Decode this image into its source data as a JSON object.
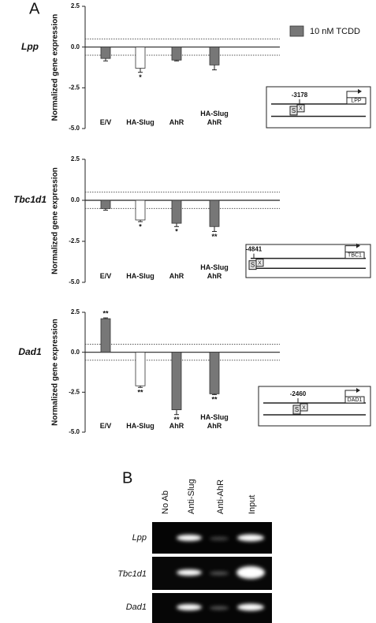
{
  "panel_a_label": "A",
  "panel_b_label": "B",
  "legend": {
    "label": "10 nM TCDD",
    "color": "#777777"
  },
  "chart_data": [
    {
      "type": "bar",
      "gene_label": "Lpp",
      "y_label": "Normalized gene expression",
      "categories": [
        "E/V",
        "HA-Slug",
        "AhR",
        "HA-Slug\nAhR"
      ],
      "values": [
        -0.7,
        -1.3,
        -0.8,
        -1.1
      ],
      "errors": [
        0.15,
        0.25,
        0.05,
        0.3
      ],
      "colors": [
        "#777777",
        "#ffffff",
        "#777777",
        "#777777"
      ],
      "annotations": [
        null,
        "*",
        null,
        null
      ],
      "ref_lines": [
        0.5,
        -0.5
      ],
      "ylim": [
        -5,
        2.5
      ],
      "yticks": [
        2.5,
        {
          "value": 0,
          "label": "0.0"
        },
        -2.5,
        {
          "value": -5,
          "label": "-5.0"
        }
      ]
    },
    {
      "type": "bar",
      "gene_label": "Tbc1d1",
      "y_label": "Normalized gene expression",
      "categories": [
        "E/V",
        "HA-Slug",
        "AhR",
        "HA-Slug\nAhR"
      ],
      "values": [
        -0.5,
        -1.2,
        -1.4,
        -1.6
      ],
      "errors": [
        0.1,
        0.1,
        0.2,
        0.3
      ],
      "colors": [
        "#777777",
        "#ffffff",
        "#777777",
        "#777777"
      ],
      "annotations": [
        null,
        "*",
        "*",
        "**"
      ],
      "ref_lines": [
        0.5,
        -0.5
      ],
      "ylim": [
        -5,
        2.5
      ],
      "yticks": [
        2.5,
        {
          "value": 0,
          "label": "0.0"
        },
        -2.5,
        {
          "value": -5,
          "label": "-5.0"
        }
      ]
    },
    {
      "type": "bar",
      "gene_label": "Dad1",
      "y_label": "Normalized gene expression",
      "categories": [
        "E/V",
        "HA-Slug",
        "AhR",
        "HA-Slug\nAhR"
      ],
      "values": [
        2.1,
        -2.1,
        -3.6,
        -2.6
      ],
      "errors": [
        0.05,
        0.1,
        0.3,
        0.05
      ],
      "colors": [
        "#777777",
        "#ffffff",
        "#777777",
        "#777777"
      ],
      "annotations": [
        "**",
        "**",
        "**",
        "**"
      ],
      "ref_lines": [
        0.5,
        -0.5
      ],
      "ylim": [
        -5,
        2.5
      ],
      "yticks": [
        2.5,
        {
          "value": 0,
          "label": "0.0"
        },
        -2.5,
        {
          "value": -5,
          "label": "-5.0"
        }
      ]
    }
  ],
  "diagrams": [
    {
      "position": "-3178",
      "s": "S",
      "x": "X",
      "gene": "LPP"
    },
    {
      "position": "-4841",
      "s": "S",
      "x": "X",
      "gene": "TBC1"
    },
    {
      "position": "-2460",
      "s": "S",
      "x": "X",
      "gene": "DAD1"
    }
  ],
  "gel": {
    "columns": [
      "No Ab",
      "Anti-Slug",
      "Anti-AhR",
      "Input"
    ],
    "rows": [
      "Lpp",
      "Tbc1d1",
      "Dad1"
    ]
  }
}
